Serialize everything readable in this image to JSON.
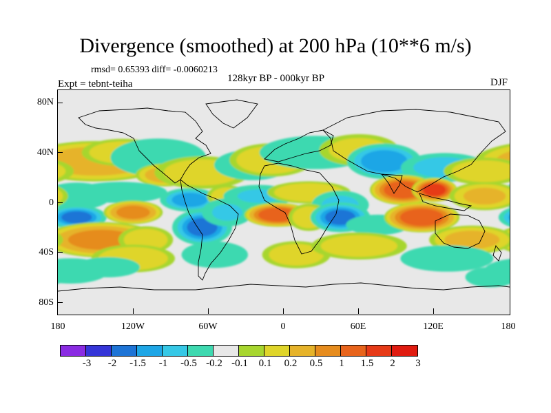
{
  "header": {
    "title": "Divergence (smoothed) at 200 hPa (10**6 m/s)",
    "stats": "rmsd= 0.65393 diff= -0.0060213",
    "expt": "Expt = tebnt-teiha",
    "period": "128kyr BP - 000kyr BP",
    "season": "DJF"
  },
  "axes": {
    "y_labels": [
      "80N",
      "40N",
      "0",
      "40S",
      "80S"
    ],
    "x_labels": [
      "180",
      "120W",
      "60W",
      "0",
      "60E",
      "120E",
      "180"
    ]
  },
  "colorbar": {
    "colors": [
      "#8a2be2",
      "#3535d8",
      "#1e74d6",
      "#1ea6e6",
      "#36c8e6",
      "#3ed9b0",
      "#e8e8e8",
      "#a7d62f",
      "#dfd52a",
      "#e6b32a",
      "#e68c1e",
      "#e8641c",
      "#e63a17",
      "#e01b10"
    ],
    "labels": [
      "-3",
      "-2",
      "-1.5",
      "-1",
      "-0.5",
      "-0.2",
      "-0.1",
      "0.1",
      "0.2",
      "0.5",
      "1",
      "1.5",
      "2",
      "3"
    ]
  },
  "map": {
    "lon_range": [
      -180,
      180
    ],
    "lat_range": [
      -90,
      90
    ],
    "blobs": [
      {
        "lon": -150,
        "lat": 33,
        "w": 50,
        "h": 14,
        "v": 1.0
      },
      {
        "lon": -128,
        "lat": 40,
        "w": 30,
        "h": 10,
        "v": 0.55
      },
      {
        "lon": -100,
        "lat": 36,
        "w": 35,
        "h": 14,
        "v": -0.5
      },
      {
        "lon": -95,
        "lat": 22,
        "w": 20,
        "h": 8,
        "v": 0.9
      },
      {
        "lon": -65,
        "lat": 24,
        "w": 35,
        "h": 12,
        "v": 0.5
      },
      {
        "lon": -25,
        "lat": 30,
        "w": 30,
        "h": 12,
        "v": -0.3
      },
      {
        "lon": -10,
        "lat": 34,
        "w": 30,
        "h": 12,
        "v": 0.6
      },
      {
        "lon": 25,
        "lat": 40,
        "w": 40,
        "h": 12,
        "v": -0.6
      },
      {
        "lon": 60,
        "lat": 42,
        "w": 30,
        "h": 12,
        "v": 0.4
      },
      {
        "lon": 80,
        "lat": 33,
        "w": 25,
        "h": 12,
        "v": -1.5
      },
      {
        "lon": 128,
        "lat": 28,
        "w": 30,
        "h": 10,
        "v": -1.0
      },
      {
        "lon": 160,
        "lat": 25,
        "w": 30,
        "h": 10,
        "v": 0.5
      },
      {
        "lon": -165,
        "lat": 5,
        "w": 25,
        "h": 10,
        "v": -0.5
      },
      {
        "lon": -130,
        "lat": 8,
        "w": 35,
        "h": 8,
        "v": -0.4
      },
      {
        "lon": -75,
        "lat": 2,
        "w": 20,
        "h": 8,
        "v": -1.4
      },
      {
        "lon": -45,
        "lat": 5,
        "w": 15,
        "h": 8,
        "v": 0.5
      },
      {
        "lon": -20,
        "lat": 5,
        "w": 25,
        "h": 8,
        "v": -0.7
      },
      {
        "lon": 20,
        "lat": 8,
        "w": 30,
        "h": 8,
        "v": 0.6
      },
      {
        "lon": 45,
        "lat": -2,
        "w": 20,
        "h": 10,
        "v": -0.8
      },
      {
        "lon": 95,
        "lat": 10,
        "w": 22,
        "h": 10,
        "v": 2.0
      },
      {
        "lon": 120,
        "lat": 10,
        "w": 15,
        "h": 8,
        "v": 2.2
      },
      {
        "lon": 160,
        "lat": 5,
        "w": 25,
        "h": 10,
        "v": 0.7
      },
      {
        "lon": -165,
        "lat": -12,
        "w": 20,
        "h": 8,
        "v": -1.7
      },
      {
        "lon": -120,
        "lat": -8,
        "w": 20,
        "h": 8,
        "v": 1.3
      },
      {
        "lon": -145,
        "lat": -30,
        "w": 40,
        "h": 12,
        "v": 1.3
      },
      {
        "lon": -110,
        "lat": -30,
        "w": 20,
        "h": 10,
        "v": 0.5
      },
      {
        "lon": -65,
        "lat": -20,
        "w": 20,
        "h": 12,
        "v": -1.7
      },
      {
        "lon": -45,
        "lat": -8,
        "w": 18,
        "h": 10,
        "v": -0.7
      },
      {
        "lon": -5,
        "lat": -10,
        "w": 22,
        "h": 8,
        "v": 2.0
      },
      {
        "lon": 20,
        "lat": -12,
        "w": 15,
        "h": 10,
        "v": 0.5
      },
      {
        "lon": 45,
        "lat": -12,
        "w": 20,
        "h": 10,
        "v": -1.7
      },
      {
        "lon": 75,
        "lat": -18,
        "w": 25,
        "h": 8,
        "v": -0.3
      },
      {
        "lon": 110,
        "lat": -12,
        "w": 25,
        "h": 10,
        "v": 2.0
      },
      {
        "lon": 150,
        "lat": -30,
        "w": 30,
        "h": 10,
        "v": 0.8
      },
      {
        "lon": -120,
        "lat": -45,
        "w": 30,
        "h": 10,
        "v": 0.6
      },
      {
        "lon": -55,
        "lat": -42,
        "w": 25,
        "h": 10,
        "v": -0.4
      },
      {
        "lon": 10,
        "lat": -42,
        "w": 25,
        "h": 10,
        "v": 0.5
      },
      {
        "lon": 60,
        "lat": -35,
        "w": 35,
        "h": 10,
        "v": 0.5
      },
      {
        "lon": 130,
        "lat": -45,
        "w": 35,
        "h": 10,
        "v": -0.4
      },
      {
        "lon": -170,
        "lat": -55,
        "w": 30,
        "h": 10,
        "v": -0.3
      },
      {
        "lon": -140,
        "lat": -52,
        "w": 25,
        "h": 8,
        "v": -0.3
      },
      {
        "lon": 165,
        "lat": -60,
        "w": 20,
        "h": 8,
        "v": -0.3
      }
    ],
    "bands": [
      {
        "lon": -90,
        "lat": -25,
        "len": 60,
        "dlat": -20,
        "v": 0.5
      }
    ]
  }
}
